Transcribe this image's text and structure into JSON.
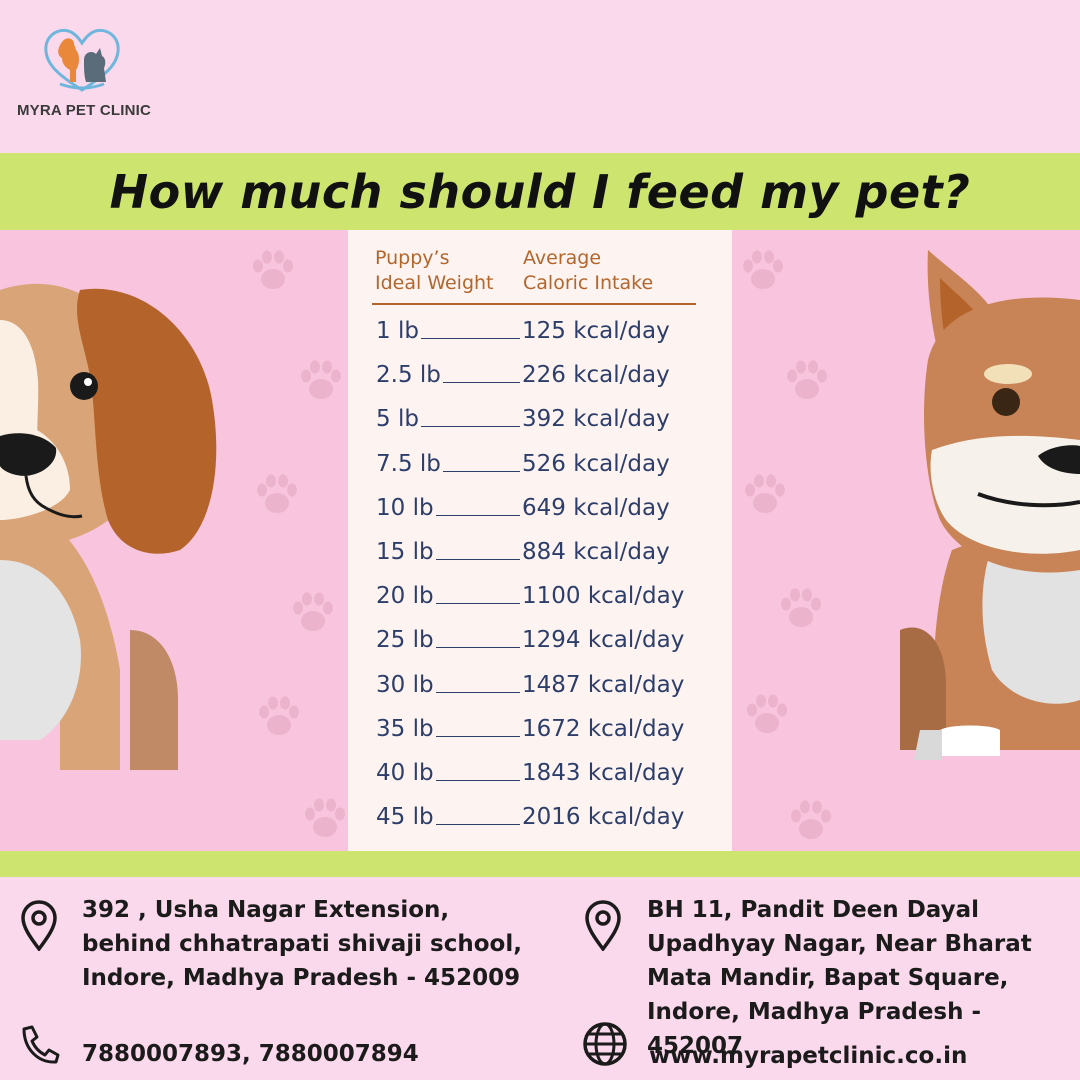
{
  "brand": {
    "name": "MYRA PET CLINIC"
  },
  "title": "How much should I feed my pet?",
  "table": {
    "headers": {
      "weight": [
        "Puppy’s",
        "Ideal Weight"
      ],
      "intake": [
        "Average",
        "Caloric Intake"
      ]
    },
    "rows": [
      {
        "weight": "1 lb",
        "intake": "125 kcal/day"
      },
      {
        "weight": "2.5 lb",
        "intake": "226 kcal/day"
      },
      {
        "weight": "5 lb",
        "intake": "392 kcal/day"
      },
      {
        "weight": "7.5 lb",
        "intake": "526 kcal/day"
      },
      {
        "weight": "10 lb",
        "intake": "649 kcal/day"
      },
      {
        "weight": "15 lb",
        "intake": "884 kcal/day"
      },
      {
        "weight": "20 lb",
        "intake": "1100 kcal/day"
      },
      {
        "weight": "25 lb",
        "intake": "1294 kcal/day"
      },
      {
        "weight": "30 lb",
        "intake": "1487 kcal/day"
      },
      {
        "weight": "35 lb",
        "intake": "1672 kcal/day"
      },
      {
        "weight": "40 lb",
        "intake": "1843 kcal/day"
      },
      {
        "weight": "45 lb",
        "intake": "2016 kcal/day"
      }
    ]
  },
  "contact": {
    "address_1": [
      "392 , Usha Nagar Extension,",
      "behind chhatrapati shivaji school,",
      "Indore, Madhya Pradesh - 452009"
    ],
    "address_2": [
      "BH 11,  Pandit Deen Dayal",
      "Upadhyay Nagar, Near Bharat",
      "Mata Mandir, Bapat Square,",
      "Indore, Madhya Pradesh - 452007"
    ],
    "phone": "7880007893, 7880007894",
    "website": "www.myrapetclinic.co.in"
  },
  "icons": {
    "address_1": "location-pin-icon",
    "address_2": "location-pin-icon",
    "phone": "phone-icon",
    "website": "globe-icon"
  },
  "colors": {
    "background": "#fbd9ec",
    "band": "#cde46f",
    "panel": "#fdf3f1",
    "header_text": "#b3662b",
    "table_text": "#2d3e6a"
  }
}
